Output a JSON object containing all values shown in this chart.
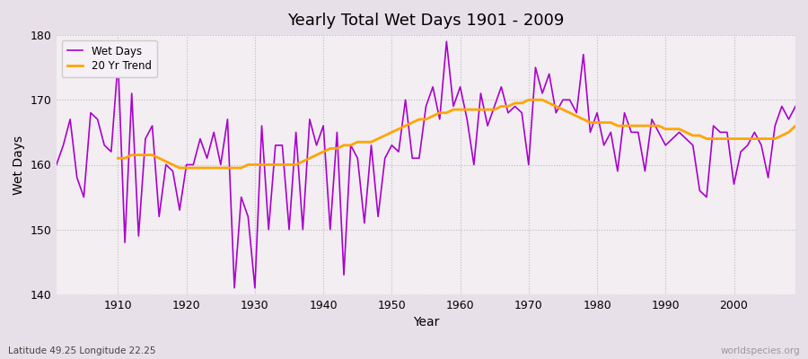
{
  "title": "Yearly Total Wet Days 1901 - 2009",
  "xlabel": "Year",
  "ylabel": "Wet Days",
  "subtitle": "Latitude 49.25 Longitude 22.25",
  "watermark": "worldspecies.org",
  "ylim": [
    140,
    180
  ],
  "xlim": [
    1901,
    2009
  ],
  "yticks": [
    140,
    150,
    160,
    170,
    180
  ],
  "xticks": [
    1910,
    1920,
    1930,
    1940,
    1950,
    1960,
    1970,
    1980,
    1990,
    2000
  ],
  "wet_days_color": "#AA00CC",
  "trend_color": "#FFA500",
  "fig_bg_color": "#E8E0E8",
  "plot_bg_color": "#F2EEF2",
  "wet_days": [
    160,
    163,
    167,
    158,
    155,
    168,
    167,
    163,
    162,
    176,
    148,
    171,
    149,
    164,
    166,
    152,
    160,
    159,
    153,
    160,
    160,
    164,
    161,
    165,
    160,
    167,
    141,
    155,
    152,
    141,
    166,
    150,
    163,
    163,
    150,
    165,
    150,
    167,
    163,
    166,
    150,
    165,
    143,
    163,
    161,
    151,
    163,
    152,
    161,
    163,
    162,
    170,
    161,
    161,
    169,
    172,
    167,
    179,
    169,
    172,
    167,
    160,
    171,
    166,
    169,
    172,
    168,
    169,
    168,
    160,
    175,
    171,
    174,
    168,
    170,
    170,
    168,
    177,
    165,
    168,
    163,
    165,
    159,
    168,
    165,
    165,
    159,
    167,
    165,
    163,
    164,
    165,
    164,
    163,
    156,
    155,
    166,
    165,
    165,
    157,
    162,
    163,
    165,
    163,
    158,
    166,
    169,
    167,
    169
  ],
  "trend_20yr": [
    null,
    null,
    null,
    null,
    null,
    null,
    null,
    null,
    null,
    161.0,
    161.0,
    161.5,
    161.5,
    161.5,
    161.5,
    161.0,
    160.5,
    160.0,
    159.5,
    159.5,
    159.5,
    159.5,
    159.5,
    159.5,
    159.5,
    159.5,
    159.5,
    159.5,
    160.0,
    160.0,
    160.0,
    160.0,
    160.0,
    160.0,
    160.0,
    160.0,
    160.5,
    161.0,
    161.5,
    162.0,
    162.5,
    162.5,
    163.0,
    163.0,
    163.5,
    163.5,
    163.5,
    164.0,
    164.5,
    165.0,
    165.5,
    166.0,
    166.5,
    167.0,
    167.0,
    167.5,
    168.0,
    168.0,
    168.5,
    168.5,
    168.5,
    168.5,
    168.5,
    168.5,
    168.5,
    169.0,
    169.0,
    169.5,
    169.5,
    170.0,
    170.0,
    170.0,
    169.5,
    169.0,
    168.5,
    168.0,
    167.5,
    167.0,
    166.5,
    166.5,
    166.5,
    166.5,
    166.0,
    166.0,
    166.0,
    166.0,
    166.0,
    166.0,
    166.0,
    165.5,
    165.5,
    165.5,
    165.0,
    164.5,
    164.5,
    164.0,
    164.0,
    164.0,
    164.0,
    164.0,
    164.0,
    164.0,
    164.0,
    164.0,
    164.0,
    164.0,
    164.5,
    165.0,
    166.0
  ]
}
